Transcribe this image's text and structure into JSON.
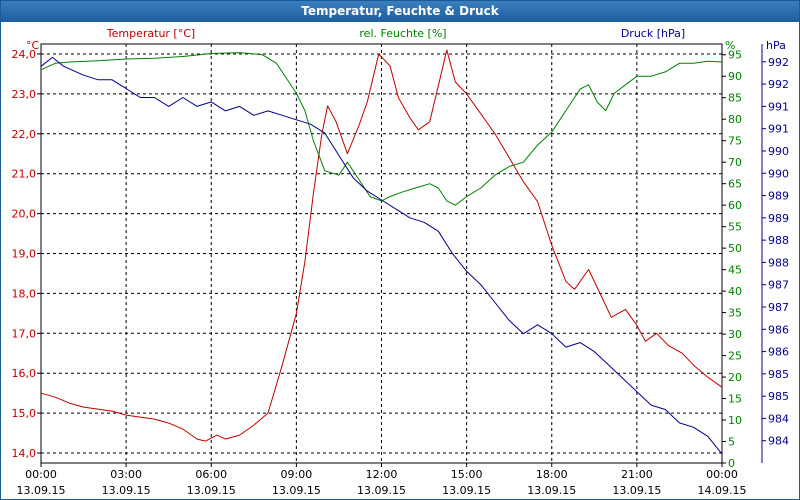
{
  "window_title": "Temperatur, Feuchte & Druck",
  "colors": {
    "temperature": "#c00000",
    "humidity": "#008000",
    "pressure": "#00008b",
    "title_bar": "#2a6cb0",
    "grid": "#000000",
    "frame": "#000000"
  },
  "chart_data": {
    "type": "line",
    "title": "Temperatur, Feuchte & Druck",
    "x_ticks": [
      {
        "hour": 0,
        "time": "00:00",
        "date": "13.09.15"
      },
      {
        "hour": 3,
        "time": "03:00",
        "date": "13.09.15"
      },
      {
        "hour": 6,
        "time": "06:00",
        "date": "13.09.15"
      },
      {
        "hour": 9,
        "time": "09:00",
        "date": "13.09.15"
      },
      {
        "hour": 12,
        "time": "12:00",
        "date": "13.09.15"
      },
      {
        "hour": 15,
        "time": "15:00",
        "date": "13.09.15"
      },
      {
        "hour": 18,
        "time": "18:00",
        "date": "13.09.15"
      },
      {
        "hour": 21,
        "time": "21:00",
        "date": "13.09.15"
      },
      {
        "hour": 24,
        "time": "00:00",
        "date": "14.09.15"
      }
    ],
    "xlim": [
      0,
      24
    ],
    "axes": {
      "temperature": {
        "label": "Temperatur [°C]",
        "unit": "°C",
        "ylim": [
          13.75,
          24.25
        ],
        "tick_values": [
          14.0,
          15.0,
          16.0,
          17.0,
          18.0,
          19.0,
          20.0,
          21.0,
          22.0,
          23.0,
          24.0
        ],
        "tick_labels": [
          "14,0",
          "15,0",
          "16,0",
          "17,0",
          "18,0",
          "19,0",
          "20,0",
          "21,0",
          "22,0",
          "23,0",
          "24,0"
        ]
      },
      "humidity": {
        "label": "rel. Feuchte [%]",
        "unit": "%",
        "ylim": [
          0,
          97.5
        ],
        "tick_values": [
          0,
          5,
          10,
          15,
          20,
          25,
          30,
          35,
          40,
          45,
          50,
          55,
          60,
          65,
          70,
          75,
          80,
          85,
          90,
          95
        ],
        "tick_labels": [
          "0",
          "5",
          "10",
          "15",
          "20",
          "25",
          "30",
          "35",
          "40",
          "45",
          "50",
          "55",
          "60",
          "65",
          "70",
          "75",
          "80",
          "85",
          "90",
          "95"
        ]
      },
      "pressure": {
        "label": "Druck [hPa]",
        "unit": "hPa",
        "ylim": [
          983.4,
          992.8
        ],
        "tick_values": [
          983.9,
          984.4,
          984.9,
          985.4,
          985.9,
          986.4,
          986.9,
          987.4,
          987.9,
          988.4,
          988.9,
          989.4,
          989.9,
          990.4,
          990.9,
          991.4,
          991.9,
          992.4
        ],
        "tick_labels": [
          "984",
          "984",
          "985",
          "985",
          "986",
          "986",
          "987",
          "987",
          "988",
          "988",
          "989",
          "989",
          "990",
          "990",
          "991",
          "991",
          "992",
          "992"
        ]
      }
    },
    "series": [
      {
        "name": "Temperatur [°C]",
        "axis": "temperature",
        "color": "#c00000",
        "points": [
          [
            0,
            15.5
          ],
          [
            0.5,
            15.4
          ],
          [
            1,
            15.25
          ],
          [
            1.5,
            15.15
          ],
          [
            2,
            15.1
          ],
          [
            2.5,
            15.05
          ],
          [
            3,
            14.95
          ],
          [
            3.5,
            14.9
          ],
          [
            4,
            14.85
          ],
          [
            4.5,
            14.75
          ],
          [
            5,
            14.6
          ],
          [
            5.5,
            14.35
          ],
          [
            5.8,
            14.3
          ],
          [
            6.2,
            14.45
          ],
          [
            6.5,
            14.35
          ],
          [
            7,
            14.45
          ],
          [
            7.5,
            14.7
          ],
          [
            8,
            15.0
          ],
          [
            8.5,
            16.2
          ],
          [
            9,
            17.5
          ],
          [
            9.3,
            18.8
          ],
          [
            9.6,
            20.5
          ],
          [
            9.9,
            22.0
          ],
          [
            10.1,
            22.7
          ],
          [
            10.4,
            22.3
          ],
          [
            10.8,
            21.5
          ],
          [
            11.2,
            22.2
          ],
          [
            11.5,
            22.8
          ],
          [
            11.9,
            24.0
          ],
          [
            12.3,
            23.7
          ],
          [
            12.6,
            22.9
          ],
          [
            13.0,
            22.4
          ],
          [
            13.3,
            22.1
          ],
          [
            13.7,
            22.3
          ],
          [
            14.0,
            23.2
          ],
          [
            14.3,
            24.1
          ],
          [
            14.6,
            23.3
          ],
          [
            15.0,
            23.0
          ],
          [
            15.5,
            22.5
          ],
          [
            16.0,
            22.0
          ],
          [
            16.5,
            21.4
          ],
          [
            17.0,
            20.8
          ],
          [
            17.5,
            20.3
          ],
          [
            18.0,
            19.2
          ],
          [
            18.5,
            18.3
          ],
          [
            18.8,
            18.1
          ],
          [
            19.3,
            18.6
          ],
          [
            19.7,
            18.0
          ],
          [
            20.1,
            17.4
          ],
          [
            20.6,
            17.6
          ],
          [
            21.0,
            17.2
          ],
          [
            21.3,
            16.8
          ],
          [
            21.7,
            17.0
          ],
          [
            22.1,
            16.7
          ],
          [
            22.6,
            16.5
          ],
          [
            23.0,
            16.2
          ],
          [
            23.5,
            15.9
          ],
          [
            24.0,
            15.65
          ]
        ]
      },
      {
        "name": "rel. Feuchte [%]",
        "axis": "humidity",
        "color": "#008000",
        "points": [
          [
            0,
            91.5
          ],
          [
            0.5,
            93
          ],
          [
            1,
            93.3
          ],
          [
            2,
            93.6
          ],
          [
            3,
            94
          ],
          [
            4,
            94.2
          ],
          [
            5,
            94.6
          ],
          [
            6,
            95.3
          ],
          [
            7,
            95.5
          ],
          [
            7.8,
            95
          ],
          [
            8.3,
            93
          ],
          [
            8.7,
            89
          ],
          [
            9,
            86
          ],
          [
            9.3,
            82
          ],
          [
            9.6,
            75
          ],
          [
            10.0,
            68
          ],
          [
            10.5,
            67
          ],
          [
            10.8,
            70
          ],
          [
            11.2,
            66
          ],
          [
            11.6,
            62
          ],
          [
            12.0,
            61
          ],
          [
            12.3,
            62
          ],
          [
            12.7,
            63
          ],
          [
            13.2,
            64
          ],
          [
            13.7,
            65
          ],
          [
            14.0,
            64
          ],
          [
            14.3,
            61
          ],
          [
            14.6,
            60
          ],
          [
            15.0,
            62
          ],
          [
            15.5,
            64
          ],
          [
            16.0,
            67
          ],
          [
            16.5,
            69
          ],
          [
            17.0,
            70
          ],
          [
            17.5,
            74
          ],
          [
            18.0,
            77
          ],
          [
            18.5,
            82
          ],
          [
            19.0,
            87
          ],
          [
            19.3,
            88
          ],
          [
            19.6,
            84
          ],
          [
            19.9,
            82
          ],
          [
            20.2,
            86
          ],
          [
            20.6,
            88
          ],
          [
            21.0,
            90
          ],
          [
            21.5,
            90
          ],
          [
            22.0,
            91
          ],
          [
            22.5,
            93
          ],
          [
            23.0,
            93
          ],
          [
            23.5,
            93.5
          ],
          [
            24.0,
            93.3
          ]
        ]
      },
      {
        "name": "Druck [hPa]",
        "axis": "pressure",
        "color": "#00008b",
        "points": [
          [
            0,
            992.3
          ],
          [
            0.4,
            992.5
          ],
          [
            0.8,
            992.3
          ],
          [
            1.5,
            992.1
          ],
          [
            2,
            992.0
          ],
          [
            2.5,
            992.0
          ],
          [
            3,
            991.8
          ],
          [
            3.5,
            991.6
          ],
          [
            4,
            991.6
          ],
          [
            4.5,
            991.4
          ],
          [
            5,
            991.6
          ],
          [
            5.5,
            991.4
          ],
          [
            6,
            991.5
          ],
          [
            6.5,
            991.3
          ],
          [
            7,
            991.4
          ],
          [
            7.5,
            991.2
          ],
          [
            8,
            991.3
          ],
          [
            8.5,
            991.2
          ],
          [
            9,
            991.1
          ],
          [
            9.5,
            991.0
          ],
          [
            10,
            990.8
          ],
          [
            10.5,
            990.3
          ],
          [
            11,
            989.8
          ],
          [
            11.5,
            989.5
          ],
          [
            12,
            989.3
          ],
          [
            12.5,
            989.1
          ],
          [
            13,
            988.9
          ],
          [
            13.5,
            988.8
          ],
          [
            14,
            988.6
          ],
          [
            14.5,
            988.1
          ],
          [
            15,
            987.7
          ],
          [
            15.5,
            987.4
          ],
          [
            16,
            987.0
          ],
          [
            16.5,
            986.6
          ],
          [
            17,
            986.3
          ],
          [
            17.5,
            986.5
          ],
          [
            18,
            986.3
          ],
          [
            18.5,
            986.0
          ],
          [
            19,
            986.1
          ],
          [
            19.5,
            985.9
          ],
          [
            20,
            985.6
          ],
          [
            20.5,
            985.3
          ],
          [
            21,
            985.0
          ],
          [
            21.5,
            984.7
          ],
          [
            22,
            984.6
          ],
          [
            22.5,
            984.3
          ],
          [
            23,
            984.2
          ],
          [
            23.5,
            984.0
          ],
          [
            24,
            983.6
          ]
        ]
      }
    ]
  }
}
